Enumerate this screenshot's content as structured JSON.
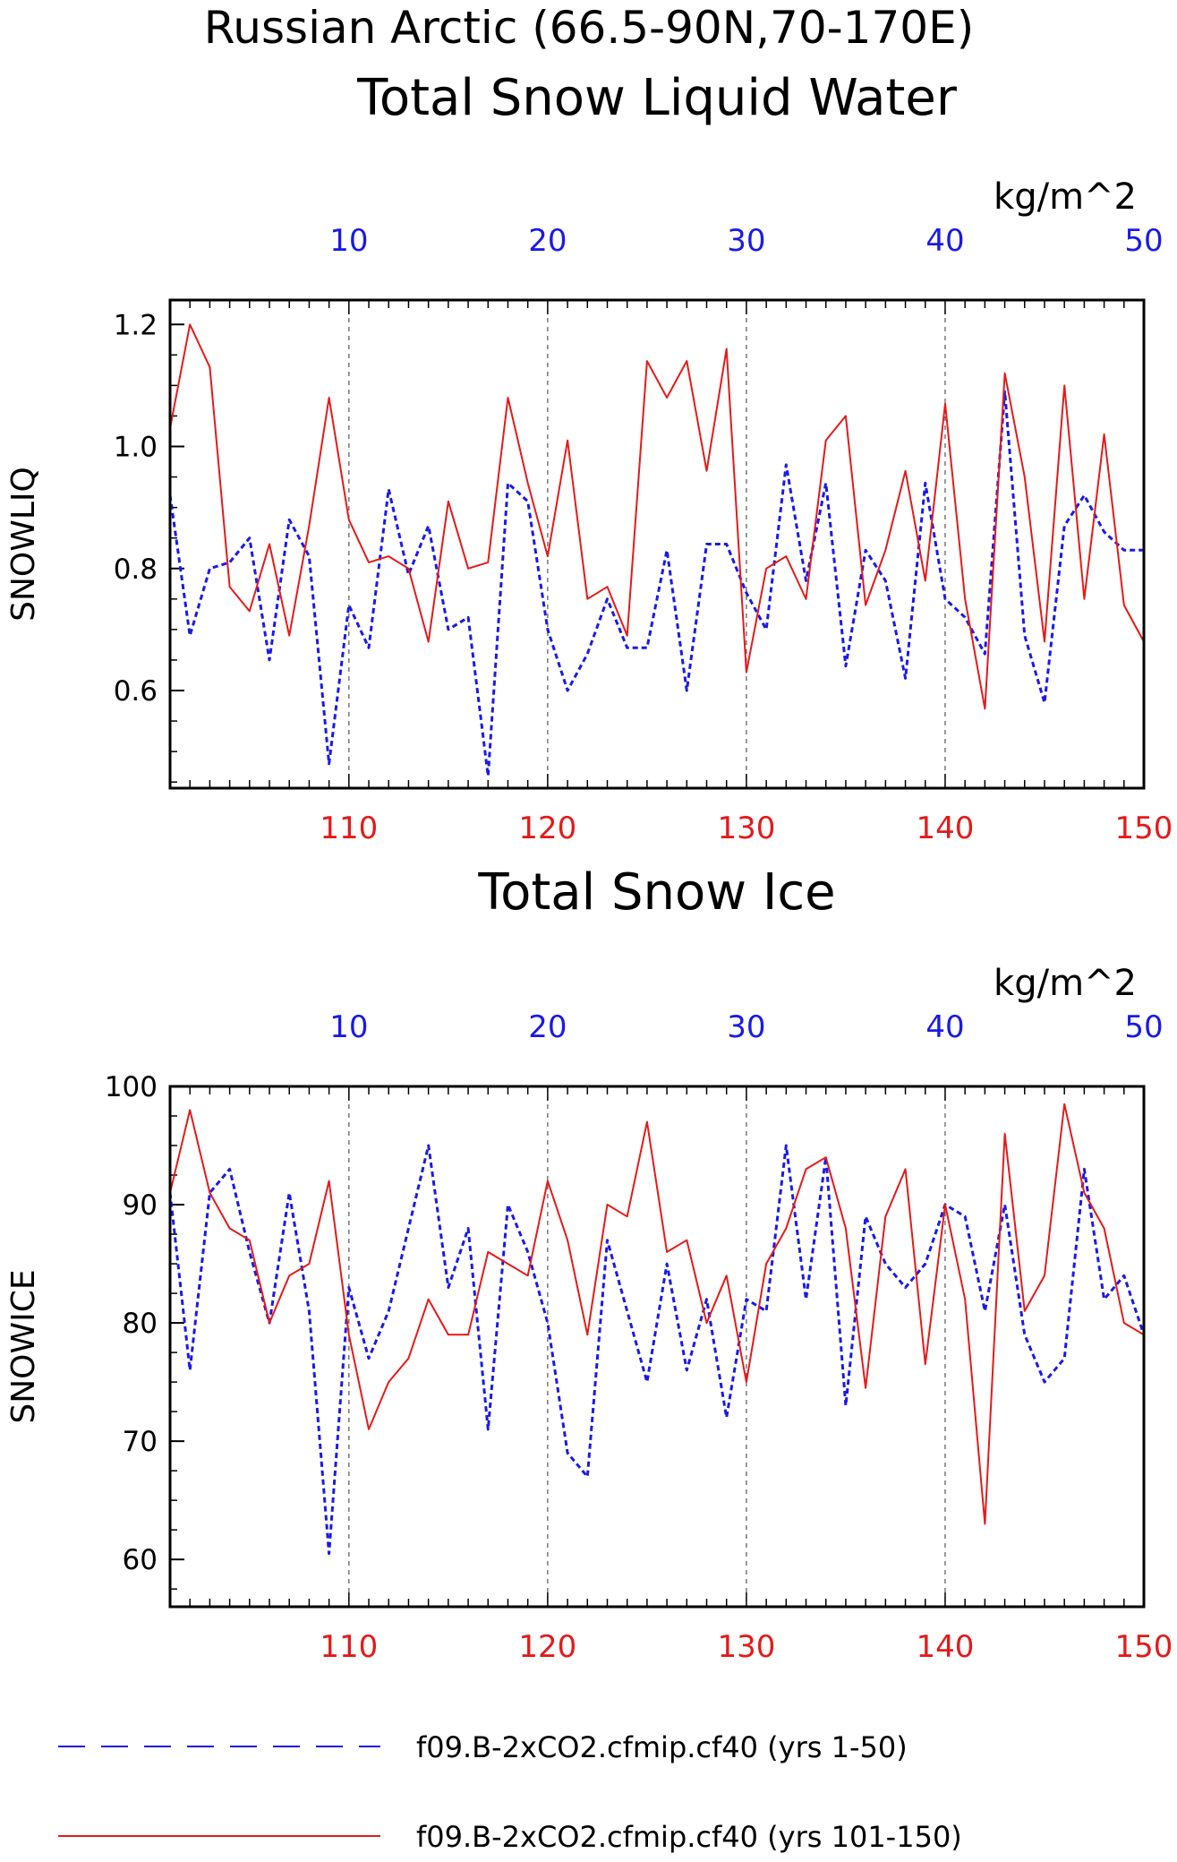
{
  "title_line1": "Russian Arctic (66.5-90N,70-170E)",
  "colors": {
    "blue": "#1a1ae6",
    "red": "#e41a1a",
    "black": "#000000",
    "grid": "#555555"
  },
  "legend": [
    {
      "label": "f09.B-2xCO2.cfmip.cf40 (yrs 1-50)",
      "color": "#1a1ae6",
      "style": "dashed"
    },
    {
      "label": "f09.B-2xCO2.cfmip.cf40 (yrs 101-150)",
      "color": "#e41a1a",
      "style": "solid"
    }
  ],
  "chart_data": [
    {
      "type": "line",
      "title": "Total Snow Liquid Water",
      "ylabel": "SNOWLIQ",
      "units": "kg/m^2",
      "ylim": [
        0.44,
        1.24
      ],
      "yticks": [
        0.6,
        0.8,
        1.0,
        1.2
      ],
      "ytick_labels": [
        "0.6",
        "0.8",
        "1.0",
        "1.2"
      ],
      "ytick_minor_step": 0.05,
      "x_top": {
        "range": [
          1,
          50
        ],
        "ticks": [
          10,
          20,
          30,
          40,
          50
        ],
        "color": "#1a1ae6"
      },
      "x_bottom": {
        "range": [
          101,
          150
        ],
        "ticks": [
          110,
          120,
          130,
          140,
          150
        ],
        "color": "#e41a1a"
      },
      "grid_x": [
        10,
        20,
        30,
        40
      ],
      "series": [
        {
          "name": "f09.B-2xCO2.cfmip.cf40 (yrs 1-50)",
          "color": "#1a1ae6",
          "style": "dashed",
          "x": [
            1,
            2,
            3,
            4,
            5,
            6,
            7,
            8,
            9,
            10,
            11,
            12,
            13,
            14,
            15,
            16,
            17,
            18,
            19,
            20,
            21,
            22,
            23,
            24,
            25,
            26,
            27,
            28,
            29,
            30,
            31,
            32,
            33,
            34,
            35,
            36,
            37,
            38,
            39,
            40,
            41,
            42,
            43,
            44,
            45,
            46,
            47,
            48,
            49,
            50
          ],
          "values": [
            0.92,
            0.69,
            0.8,
            0.81,
            0.85,
            0.65,
            0.88,
            0.82,
            0.48,
            0.74,
            0.67,
            0.93,
            0.79,
            0.87,
            0.7,
            0.72,
            0.46,
            0.94,
            0.91,
            0.7,
            0.6,
            0.66,
            0.75,
            0.67,
            0.67,
            0.83,
            0.6,
            0.84,
            0.84,
            0.76,
            0.7,
            0.97,
            0.78,
            0.94,
            0.64,
            0.83,
            0.78,
            0.62,
            0.94,
            0.75,
            0.72,
            0.66,
            1.09,
            0.69,
            0.58,
            0.87,
            0.92,
            0.86,
            0.83,
            0.83
          ]
        },
        {
          "name": "f09.B-2xCO2.cfmip.cf40 (yrs 101-150)",
          "color": "#e41a1a",
          "style": "solid",
          "x": [
            101,
            102,
            103,
            104,
            105,
            106,
            107,
            108,
            109,
            110,
            111,
            112,
            113,
            114,
            115,
            116,
            117,
            118,
            119,
            120,
            121,
            122,
            123,
            124,
            125,
            126,
            127,
            128,
            129,
            130,
            131,
            132,
            133,
            134,
            135,
            136,
            137,
            138,
            139,
            140,
            141,
            142,
            143,
            144,
            145,
            146,
            147,
            148,
            149,
            150
          ],
          "values": [
            1.03,
            1.2,
            1.13,
            0.77,
            0.73,
            0.84,
            0.69,
            0.87,
            1.08,
            0.88,
            0.81,
            0.82,
            0.8,
            0.68,
            0.91,
            0.8,
            0.81,
            1.08,
            0.94,
            0.82,
            1.01,
            0.75,
            0.77,
            0.69,
            1.14,
            1.08,
            1.14,
            0.96,
            1.16,
            0.63,
            0.8,
            0.82,
            0.75,
            1.01,
            1.05,
            0.74,
            0.83,
            0.96,
            0.78,
            1.07,
            0.75,
            0.57,
            1.12,
            0.95,
            0.68,
            1.1,
            0.75,
            1.02,
            0.74,
            0.68
          ]
        }
      ]
    },
    {
      "type": "line",
      "title": "Total Snow Ice",
      "ylabel": "SNOWICE",
      "units": "kg/m^2",
      "ylim": [
        56,
        100
      ],
      "yticks": [
        60,
        70,
        80,
        90,
        100
      ],
      "ytick_labels": [
        "60",
        "70",
        "80",
        "90",
        "100"
      ],
      "ytick_minor_step": 2.5,
      "x_top": {
        "range": [
          1,
          50
        ],
        "ticks": [
          10,
          20,
          30,
          40,
          50
        ],
        "color": "#1a1ae6"
      },
      "x_bottom": {
        "range": [
          101,
          150
        ],
        "ticks": [
          110,
          120,
          130,
          140,
          150
        ],
        "color": "#e41a1a"
      },
      "grid_x": [
        10,
        20,
        30,
        40
      ],
      "series": [
        {
          "name": "f09.B-2xCO2.cfmip.cf40 (yrs 1-50)",
          "color": "#1a1ae6",
          "style": "dashed",
          "x": [
            1,
            2,
            3,
            4,
            5,
            6,
            7,
            8,
            9,
            10,
            11,
            12,
            13,
            14,
            15,
            16,
            17,
            18,
            19,
            20,
            21,
            22,
            23,
            24,
            25,
            26,
            27,
            28,
            29,
            30,
            31,
            32,
            33,
            34,
            35,
            36,
            37,
            38,
            39,
            40,
            41,
            42,
            43,
            44,
            45,
            46,
            47,
            48,
            49,
            50
          ],
          "values": [
            91,
            76,
            91,
            93,
            86,
            80,
            91,
            81,
            60.5,
            83,
            77,
            81,
            88,
            95,
            83,
            88,
            71,
            90,
            86,
            80,
            69,
            67,
            87,
            81,
            75,
            85,
            76,
            82,
            72,
            82,
            81,
            95,
            82,
            94,
            73,
            89,
            85,
            83,
            85,
            90,
            89,
            81,
            90,
            79,
            75,
            77,
            93,
            82,
            84,
            79
          ]
        },
        {
          "name": "f09.B-2xCO2.cfmip.cf40 (yrs 101-150)",
          "color": "#e41a1a",
          "style": "solid",
          "x": [
            101,
            102,
            103,
            104,
            105,
            106,
            107,
            108,
            109,
            110,
            111,
            112,
            113,
            114,
            115,
            116,
            117,
            118,
            119,
            120,
            121,
            122,
            123,
            124,
            125,
            126,
            127,
            128,
            129,
            130,
            131,
            132,
            133,
            134,
            135,
            136,
            137,
            138,
            139,
            140,
            141,
            142,
            143,
            144,
            145,
            146,
            147,
            148,
            149,
            150
          ],
          "values": [
            91,
            98,
            91,
            88,
            87,
            80,
            84,
            85,
            92,
            79,
            71,
            75,
            77,
            82,
            79,
            79,
            86,
            85,
            84,
            92,
            87,
            79,
            90,
            89,
            97,
            86,
            87,
            80,
            84,
            75,
            85,
            88,
            93,
            94,
            88,
            74.5,
            89,
            93,
            76.5,
            90,
            82,
            63,
            96,
            81,
            84,
            98.5,
            91,
            88,
            80,
            79
          ]
        }
      ]
    }
  ]
}
